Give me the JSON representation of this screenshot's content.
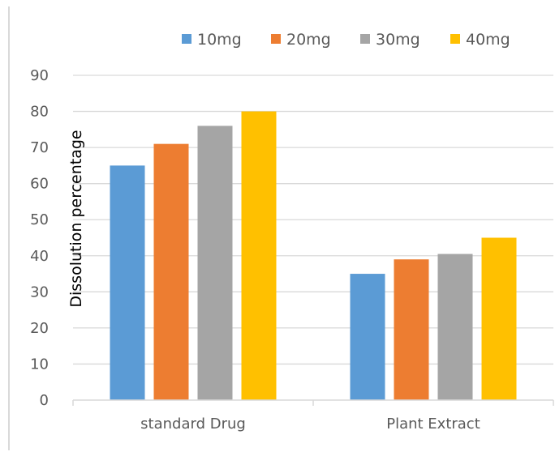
{
  "chart_data": {
    "type": "bar",
    "title": "",
    "xlabel": "",
    "ylabel": "Dissolution percentage",
    "categories": [
      "standard Drug",
      "Plant Extract"
    ],
    "series": [
      {
        "name": "10mg",
        "color": "#5B9BD5",
        "values": [
          65,
          35
        ]
      },
      {
        "name": "20mg",
        "color": "#ED7D31",
        "values": [
          71,
          39
        ]
      },
      {
        "name": "30mg",
        "color": "#A5A5A5",
        "values": [
          76,
          40.5
        ]
      },
      {
        "name": "40mg",
        "color": "#FFC000",
        "values": [
          80,
          45
        ]
      }
    ],
    "ylim": [
      0,
      90
    ],
    "yticks": [
      0,
      10,
      20,
      30,
      40,
      50,
      60,
      70,
      80,
      90
    ],
    "grid": true,
    "legend": "top-right",
    "colors": {
      "grid": "#D9D9D9",
      "text": "#595959",
      "frame": "#D9D9D9"
    }
  }
}
